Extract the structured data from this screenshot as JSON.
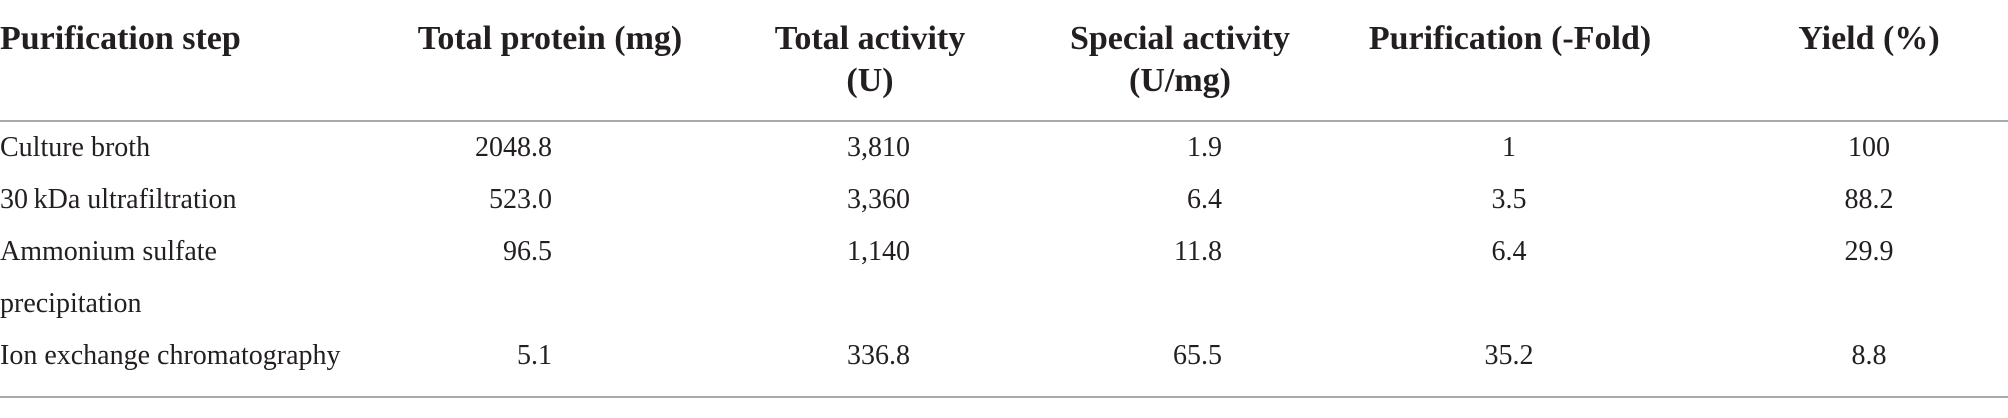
{
  "table": {
    "headers": [
      [
        "Purification step"
      ],
      [
        "Total protein (mg)"
      ],
      [
        "Total activity",
        "(U)"
      ],
      [
        "Special activity",
        "(U/mg)"
      ],
      [
        "Purification (-Fold)"
      ],
      [
        "Yield (%)"
      ]
    ],
    "rows": [
      {
        "step": "Culture broth",
        "total_protein": "2048.8",
        "total_activity": "3,810",
        "special_activity": "1.9",
        "purification_fold": "1",
        "yield": "100"
      },
      {
        "step": "30 kDa ultrafiltration",
        "total_protein": "523.0",
        "total_activity": "3,360",
        "special_activity": "6.4",
        "purification_fold": "3.5",
        "yield": "88.2"
      },
      {
        "step": "Ammonium sulfate",
        "step_continued": "precipitation",
        "total_protein": "96.5",
        "total_activity": "1,140",
        "special_activity": "11.8",
        "purification_fold": "6.4",
        "yield": "29.9"
      },
      {
        "step": "Ion exchange chromatography",
        "total_protein": "5.1",
        "total_activity": "336.8",
        "special_activity": "65.5",
        "purification_fold": "35.2",
        "yield": "8.8"
      }
    ]
  }
}
